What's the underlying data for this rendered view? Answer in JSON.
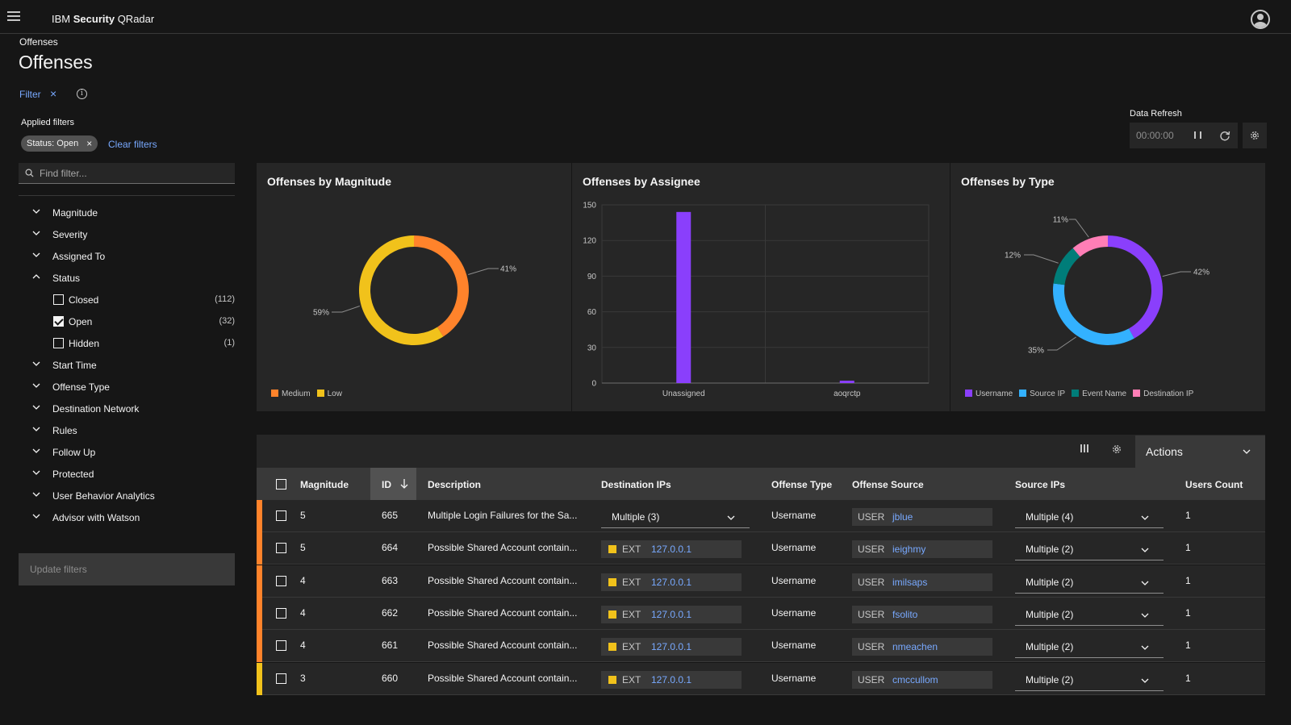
{
  "header": {
    "brand_prefix": "IBM",
    "brand_name": "Security",
    "brand_suffix": "QRadar"
  },
  "breadcrumb": "Offenses",
  "title": "Offenses",
  "filter_panel": {
    "filter_label": "Filter",
    "applied_label": "Applied filters",
    "tag": "Status: Open",
    "clear_label": "Clear filters",
    "search_placeholder": "Find filter...",
    "facets_before": [
      "Magnitude",
      "Severity",
      "Assigned To"
    ],
    "status_label": "Status",
    "status_options": [
      {
        "label": "Closed",
        "count": "(112)",
        "checked": false
      },
      {
        "label": "Open",
        "count": "(32)",
        "checked": true
      },
      {
        "label": "Hidden",
        "count": "(1)",
        "checked": false
      }
    ],
    "facets_after": [
      "Start Time",
      "Offense Type",
      "Destination Network",
      "Rules",
      "Follow Up",
      "Protected",
      "User Behavior Analytics",
      "Advisor with Watson"
    ],
    "update_label": "Update filters"
  },
  "data_refresh": {
    "label": "Data Refresh",
    "time": "00:00:00"
  },
  "colors": {
    "medium": "#ff832b",
    "low": "#f1c21b",
    "purple": "#8a3ffc",
    "cyan": "#33b1ff",
    "teal": "#007d79",
    "pink": "#ff7eb6"
  },
  "chart_data": [
    {
      "type": "pie",
      "title": "Offenses by Magnitude",
      "slices": [
        {
          "label": "Medium",
          "value": 41
        },
        {
          "label": "Low",
          "value": 59
        }
      ],
      "labels": [
        "41%",
        "59%"
      ],
      "legend": "bottom-left"
    },
    {
      "type": "bar",
      "title": "Offenses by Assignee",
      "categories": [
        "Unassigned",
        "aoqrctp"
      ],
      "values": [
        144,
        2
      ],
      "ylim": [
        0,
        150
      ],
      "yticks": [
        "0",
        "30",
        "60",
        "90",
        "120",
        "150"
      ],
      "grid": true
    },
    {
      "type": "pie",
      "title": "Offenses by Type",
      "slices": [
        {
          "label": "Username",
          "value": 42
        },
        {
          "label": "Source IP",
          "value": 35
        },
        {
          "label": "Event Name",
          "value": 12
        },
        {
          "label": "Destination IP",
          "value": 11
        }
      ],
      "labels": [
        "42%",
        "35%",
        "12%",
        "11%"
      ],
      "legend": "bottom-left"
    }
  ],
  "table": {
    "actions_label": "Actions",
    "headers": {
      "magnitude": "Magnitude",
      "id": "ID",
      "description": "Description",
      "dest_ips": "Destination IPs",
      "offense_type": "Offense Type",
      "offense_source": "Offense Source",
      "source_ips": "Source IPs",
      "users_count": "Users Count"
    },
    "rows": [
      {
        "magnitude": "5",
        "id": "665",
        "description": "Multiple Login Failures for the Sa...",
        "dest": "Multiple (3)",
        "dest_prefix": "",
        "type": "Username",
        "source_prefix": "USER",
        "source": "jblue",
        "source_ips": "Multiple (4)",
        "users": "1",
        "level": "medium"
      },
      {
        "magnitude": "5",
        "id": "664",
        "description": "Possible Shared Account contain...",
        "dest": "127.0.0.1",
        "dest_prefix": "EXT",
        "type": "Username",
        "source_prefix": "USER",
        "source": "ieighmy",
        "source_ips": "Multiple (2)",
        "users": "1",
        "level": "medium"
      },
      {
        "magnitude": "4",
        "id": "663",
        "description": "Possible Shared Account contain...",
        "dest": "127.0.0.1",
        "dest_prefix": "EXT",
        "type": "Username",
        "source_prefix": "USER",
        "source": "imilsaps",
        "source_ips": "Multiple (2)",
        "users": "1",
        "level": "medium"
      },
      {
        "magnitude": "4",
        "id": "662",
        "description": "Possible Shared Account contain...",
        "dest": "127.0.0.1",
        "dest_prefix": "EXT",
        "type": "Username",
        "source_prefix": "USER",
        "source": "fsolito",
        "source_ips": "Multiple (2)",
        "users": "1",
        "level": "medium"
      },
      {
        "magnitude": "4",
        "id": "661",
        "description": "Possible Shared Account contain...",
        "dest": "127.0.0.1",
        "dest_prefix": "EXT",
        "type": "Username",
        "source_prefix": "USER",
        "source": "nmeachen",
        "source_ips": "Multiple (2)",
        "users": "1",
        "level": "medium"
      },
      {
        "magnitude": "3",
        "id": "660",
        "description": "Possible Shared Account contain...",
        "dest": "127.0.0.1",
        "dest_prefix": "EXT",
        "type": "Username",
        "source_prefix": "USER",
        "source": "cmccullom",
        "source_ips": "Multiple (2)",
        "users": "1",
        "level": "low"
      }
    ]
  }
}
